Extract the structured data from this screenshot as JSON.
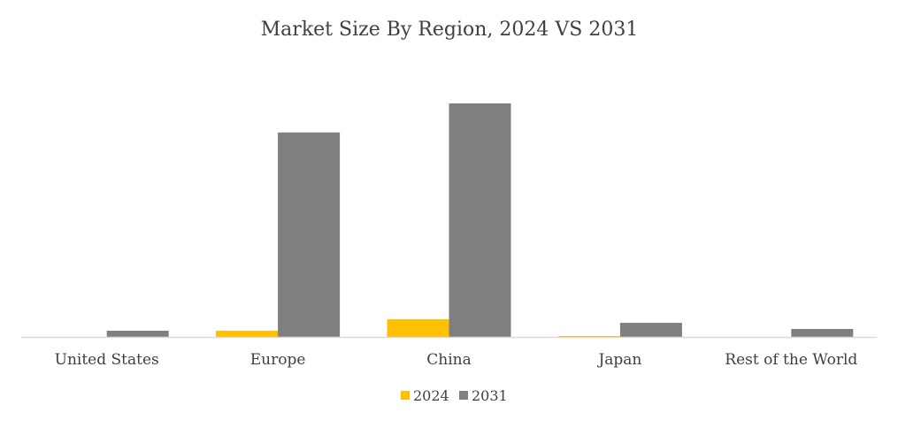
{
  "chart_data": {
    "type": "bar",
    "title": "Market Size By Region, 2024 VS 2031",
    "xlabel": "",
    "ylabel": "",
    "categories": [
      "United States",
      "Europe",
      "China",
      "Japan",
      "Rest of the World"
    ],
    "series": [
      {
        "name": "2024",
        "color": "#FFC000",
        "values": [
          0,
          7,
          20,
          1,
          0
        ]
      },
      {
        "name": "2031",
        "color": "#7F7F7F",
        "values": [
          7,
          232,
          265,
          16,
          9
        ]
      }
    ],
    "ylim": [
      0,
      300
    ],
    "grid": false,
    "legend_position": "bottom-center",
    "axis_color": "#D9D9D9"
  }
}
